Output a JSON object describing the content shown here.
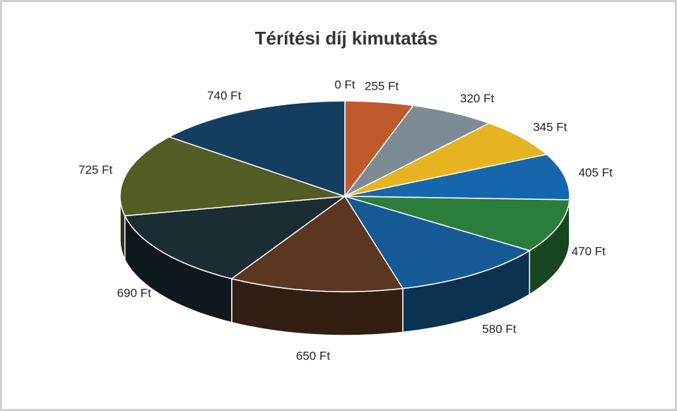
{
  "chart_data": {
    "type": "pie",
    "title": "Térítési díj kimutatás",
    "values": [
      0,
      255,
      320,
      345,
      405,
      470,
      580,
      650,
      690,
      725,
      740
    ],
    "value_labels": [
      "0 Ft",
      "255 Ft",
      "320 Ft",
      "345 Ft",
      "405 Ft",
      "470 Ft",
      "580 Ft",
      "650 Ft",
      "690 Ft",
      "725 Ft",
      "740 Ft"
    ],
    "colors": [
      "#c8a040",
      "#c0592c",
      "#7d8c94",
      "#e6b422",
      "#1666ae",
      "#2b7d3c",
      "#155a94",
      "#5b3621",
      "#1b2c33",
      "#525c24",
      "#143d60"
    ]
  }
}
